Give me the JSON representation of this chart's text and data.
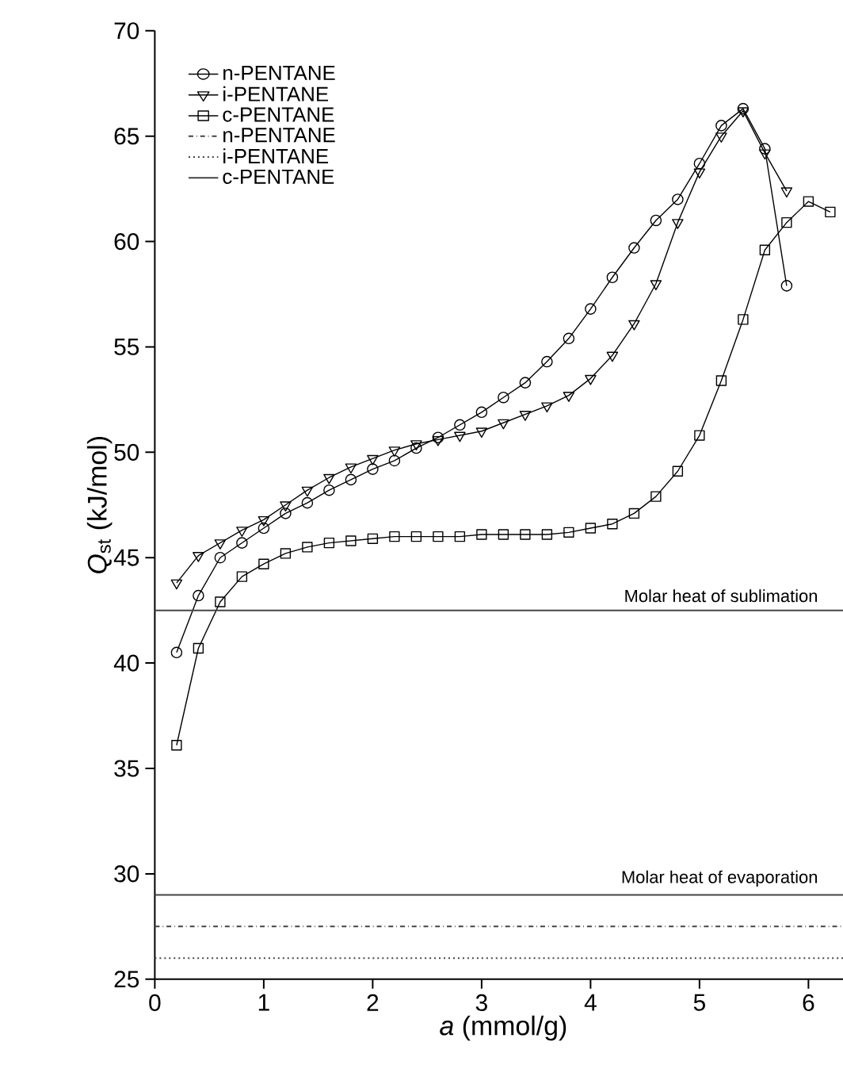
{
  "chart_data": {
    "type": "line",
    "xlabel": "*a* (mmol/g)",
    "ylabel": "*Q*$_{st}$ (kJ/mol)",
    "xlim": [
      0,
      6.4
    ],
    "ylim": [
      25,
      70
    ],
    "xticks": [
      0,
      1,
      2,
      3,
      4,
      5,
      6
    ],
    "yticks": [
      25,
      30,
      35,
      40,
      45,
      50,
      55,
      60,
      65,
      70
    ],
    "grid": false,
    "legend": "top left",
    "line_style": "solid",
    "series": [
      {
        "name": "n-PENTANE",
        "color": "#000000",
        "marker": "circle",
        "x": [
          0.2,
          0.4,
          0.6,
          0.8,
          1.0,
          1.2,
          1.4,
          1.6,
          1.8,
          2.0,
          2.2,
          2.4,
          2.6,
          2.8,
          3.0,
          3.2,
          3.4,
          3.6,
          3.8,
          4.0,
          4.2,
          4.4,
          4.6,
          4.8,
          5.0,
          5.2,
          5.4,
          5.6,
          5.8
        ],
        "values": [
          40.5,
          43.2,
          45.0,
          45.7,
          46.4,
          47.1,
          47.6,
          48.2,
          48.7,
          49.2,
          49.6,
          50.2,
          50.7,
          51.3,
          51.9,
          52.6,
          53.3,
          54.3,
          55.4,
          56.8,
          58.3,
          59.7,
          61.0,
          62.0,
          63.7,
          65.5,
          66.3,
          64.4,
          57.9
        ]
      },
      {
        "name": "i-PENTANE",
        "color": "#000000",
        "marker": "triangle",
        "x": [
          0.2,
          0.4,
          0.6,
          0.8,
          1.0,
          1.2,
          1.4,
          1.6,
          1.8,
          2.0,
          2.2,
          2.4,
          2.6,
          2.8,
          3.0,
          3.2,
          3.4,
          3.6,
          3.8,
          4.0,
          4.2,
          4.4,
          4.6,
          4.8,
          5.0,
          5.2,
          5.4,
          5.6,
          5.8
        ],
        "values": [
          43.8,
          45.1,
          45.7,
          46.3,
          46.8,
          47.5,
          48.2,
          48.8,
          49.3,
          49.7,
          50.1,
          50.4,
          50.6,
          50.8,
          51.0,
          51.4,
          51.8,
          52.2,
          52.7,
          53.5,
          54.6,
          56.1,
          58.0,
          60.9,
          63.3,
          65.0,
          66.2,
          64.2,
          62.4
        ]
      },
      {
        "name": "c-PENTANE",
        "color": "#000000",
        "marker": "square",
        "x": [
          0.2,
          0.4,
          0.6,
          0.8,
          1.0,
          1.2,
          1.4,
          1.6,
          1.8,
          2.0,
          2.2,
          2.4,
          2.6,
          2.8,
          3.0,
          3.2,
          3.4,
          3.6,
          3.8,
          4.0,
          4.2,
          4.4,
          4.6,
          4.8,
          5.0,
          5.2,
          5.4,
          5.6,
          5.8,
          6.0,
          6.2
        ],
        "values": [
          36.1,
          40.7,
          42.9,
          44.1,
          44.7,
          45.2,
          45.5,
          45.7,
          45.8,
          45.9,
          46.0,
          46.0,
          46.0,
          46.0,
          46.1,
          46.1,
          46.1,
          46.1,
          46.2,
          46.4,
          46.6,
          47.1,
          47.9,
          49.1,
          50.8,
          53.4,
          56.3,
          59.6,
          60.9,
          61.9,
          61.4
        ]
      }
    ],
    "ref_lines": [
      {
        "axis": "y",
        "value": 27.5,
        "label": "n-PENTANE",
        "line_style": "dashdot",
        "color": "#444444"
      },
      {
        "axis": "y",
        "value": 26.0,
        "label": "i-PENTANE",
        "line_style": "dotted",
        "color": "#444444"
      },
      {
        "axis": "y",
        "value": 29.0,
        "label": "c-PENTANE",
        "line_style": "solid",
        "color": "#444444"
      },
      {
        "axis": "y",
        "value": 42.5,
        "line_style": "solid",
        "color": "#444444"
      }
    ],
    "annotations": [
      {
        "text": "Molar heat of sublimation",
        "y": 42.5
      },
      {
        "text": "Molar heat of evaporation",
        "y": 29.0
      }
    ]
  }
}
